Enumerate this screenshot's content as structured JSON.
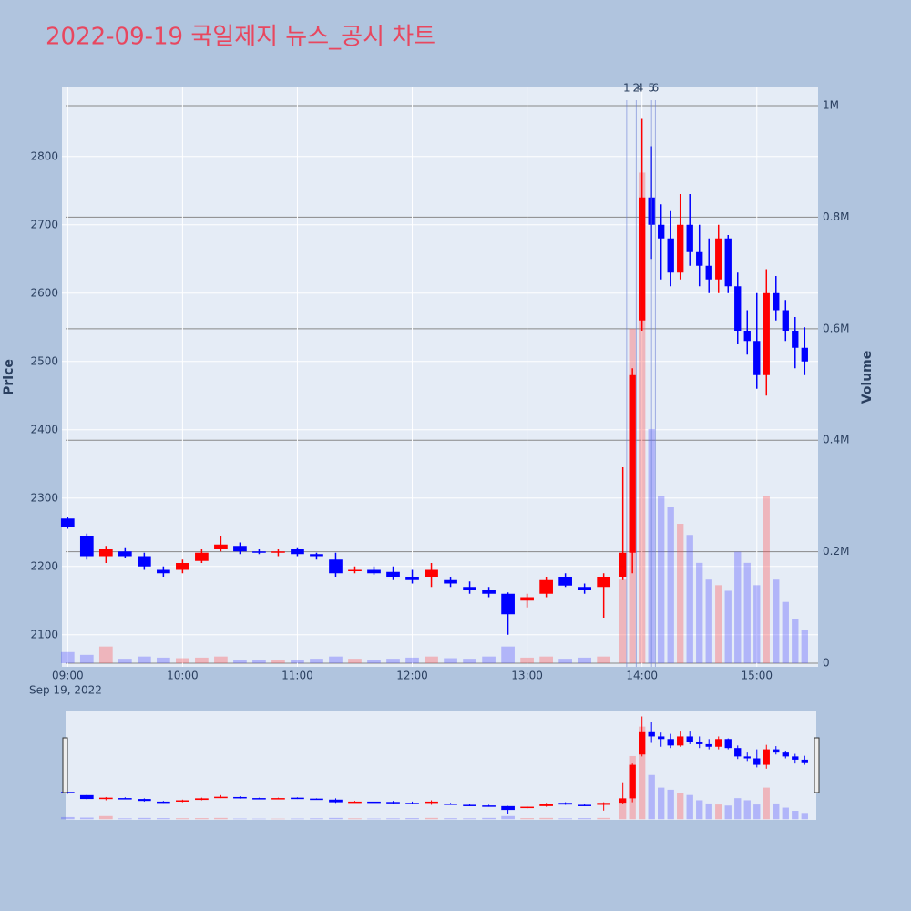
{
  "chart_data": {
    "type": "candlestick",
    "title": "2022-09-19 국일제지 뉴스_공시 차트",
    "y_title": "Price",
    "y2_title": "Volume",
    "x_date_label": "Sep 19, 2022",
    "increasing_color": "#ff0000",
    "decreasing_color": "#0000ff",
    "volume_increasing_color": "rgba(255,80,80,0.35)",
    "volume_decreasing_color": "rgba(80,80,255,0.35)",
    "x": [
      "09:00",
      "09:10",
      "09:20",
      "09:30",
      "09:40",
      "09:50",
      "10:00",
      "10:10",
      "10:20",
      "10:30",
      "10:40",
      "10:50",
      "11:00",
      "11:10",
      "11:20",
      "11:30",
      "11:40",
      "11:50",
      "12:00",
      "12:10",
      "12:20",
      "12:30",
      "12:40",
      "12:50",
      "13:00",
      "13:10",
      "13:20",
      "13:30",
      "13:40",
      "13:50",
      "13:55",
      "14:00",
      "14:05",
      "14:10",
      "14:15",
      "14:20",
      "14:25",
      "14:30",
      "14:35",
      "14:40",
      "14:45",
      "14:50",
      "14:55",
      "15:00",
      "15:05",
      "15:10",
      "15:15",
      "15:20",
      "15:25"
    ],
    "open": [
      2270,
      2245,
      2215,
      2222,
      2215,
      2195,
      2195,
      2208,
      2225,
      2230,
      2222,
      2220,
      2225,
      2218,
      2210,
      2195,
      2195,
      2192,
      2185,
      2185,
      2180,
      2170,
      2165,
      2160,
      2150,
      2160,
      2185,
      2170,
      2170,
      2185,
      2220,
      2560,
      2740,
      2700,
      2680,
      2630,
      2700,
      2660,
      2640,
      2620,
      2680,
      2610,
      2545,
      2530,
      2480,
      2600,
      2575,
      2545,
      2520
    ],
    "high": [
      2272,
      2248,
      2230,
      2228,
      2220,
      2200,
      2210,
      2225,
      2245,
      2235,
      2225,
      2225,
      2228,
      2220,
      2220,
      2200,
      2200,
      2200,
      2195,
      2205,
      2185,
      2178,
      2170,
      2162,
      2160,
      2185,
      2190,
      2175,
      2190,
      2345,
      2490,
      2855,
      2815,
      2730,
      2720,
      2745,
      2745,
      2700,
      2680,
      2700,
      2685,
      2630,
      2575,
      2600,
      2635,
      2625,
      2590,
      2565,
      2550
    ],
    "low": [
      2255,
      2210,
      2205,
      2212,
      2195,
      2185,
      2190,
      2205,
      2222,
      2218,
      2218,
      2215,
      2215,
      2210,
      2185,
      2190,
      2188,
      2180,
      2175,
      2170,
      2170,
      2160,
      2155,
      2100,
      2140,
      2155,
      2170,
      2160,
      2125,
      2180,
      2190,
      2545,
      2650,
      2620,
      2610,
      2620,
      2640,
      2610,
      2600,
      2600,
      2600,
      2525,
      2510,
      2460,
      2450,
      2560,
      2530,
      2490,
      2480
    ],
    "close": [
      2258,
      2215,
      2225,
      2215,
      2200,
      2190,
      2205,
      2220,
      2232,
      2222,
      2220,
      2222,
      2218,
      2215,
      2190,
      2195,
      2190,
      2185,
      2180,
      2195,
      2175,
      2165,
      2160,
      2130,
      2155,
      2180,
      2172,
      2165,
      2185,
      2220,
      2480,
      2740,
      2700,
      2680,
      2630,
      2700,
      2660,
      2640,
      2620,
      2680,
      2610,
      2545,
      2530,
      2480,
      2600,
      2575,
      2545,
      2520,
      2500
    ],
    "volume": [
      20000,
      15000,
      30000,
      8000,
      12000,
      10000,
      9000,
      10000,
      12000,
      6000,
      5000,
      5000,
      6000,
      8000,
      12000,
      8000,
      6000,
      8000,
      10000,
      12000,
      9000,
      8000,
      12000,
      30000,
      10000,
      12000,
      8000,
      10000,
      12000,
      150000,
      600000,
      880000,
      420000,
      300000,
      280000,
      250000,
      230000,
      180000,
      150000,
      140000,
      130000,
      200000,
      180000,
      140000,
      300000,
      150000,
      110000,
      80000,
      60000
    ],
    "annotations": [
      {
        "x": "13:52",
        "text": "1"
      },
      {
        "x": "13:57",
        "text": "2"
      },
      {
        "x": "13:59",
        "text": "4"
      },
      {
        "x": "14:05",
        "text": "5"
      },
      {
        "x": "14:07",
        "text": "6"
      }
    ],
    "xlim": [
      "08:57",
      "15:32"
    ],
    "xticks": [
      "09:00",
      "10:00",
      "11:00",
      "12:00",
      "13:00",
      "14:00",
      "15:00"
    ],
    "ylim": [
      2053,
      2901
    ],
    "yticks": [
      2100,
      2200,
      2300,
      2400,
      2500,
      2600,
      2700,
      2800
    ],
    "y2lim": [
      -6500,
      1032700
    ],
    "y2ticks": [
      0,
      {
        "value": 200000,
        "label": "0.2M"
      },
      {
        "value": 400000,
        "label": "0.4M"
      },
      {
        "value": 600000,
        "label": "0.6M"
      },
      {
        "value": 800000,
        "label": "0.8M"
      },
      {
        "value": 1000000,
        "label": "1M"
      }
    ],
    "grid": true,
    "rangeslider": true
  }
}
